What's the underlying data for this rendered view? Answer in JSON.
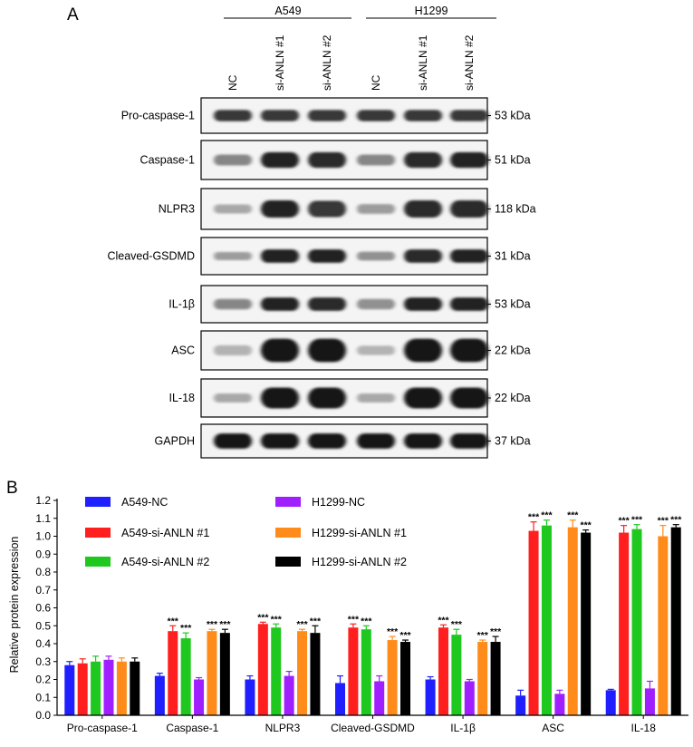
{
  "panel_a": {
    "letter": "A",
    "groups": [
      {
        "name": "A549",
        "lanes": [
          "NC",
          "si-ANLN #1",
          "si-ANLN #2"
        ]
      },
      {
        "name": "H1299",
        "lanes": [
          "NC",
          "si-ANLN #1",
          "si-ANLN #2"
        ]
      }
    ],
    "blots": [
      {
        "label": "Pro-caspase-1",
        "size": "53 kDa",
        "intensity": [
          0.8,
          0.8,
          0.8,
          0.8,
          0.8,
          0.8
        ],
        "thickness": [
          0.32,
          0.32,
          0.32,
          0.32,
          0.32,
          0.32
        ]
      },
      {
        "label": "Caspase-1",
        "size": "51 kDa",
        "intensity": [
          0.45,
          0.9,
          0.85,
          0.45,
          0.85,
          0.9
        ],
        "thickness": [
          0.28,
          0.4,
          0.4,
          0.28,
          0.4,
          0.4
        ]
      },
      {
        "label": "NLPR3",
        "size": "118 kDa",
        "intensity": [
          0.3,
          0.9,
          0.8,
          0.35,
          0.85,
          0.85
        ],
        "thickness": [
          0.22,
          0.42,
          0.4,
          0.24,
          0.42,
          0.42
        ]
      },
      {
        "label": "Cleaved-GSDMD",
        "size": "31 kDa",
        "intensity": [
          0.35,
          0.9,
          0.9,
          0.4,
          0.85,
          0.9
        ],
        "thickness": [
          0.22,
          0.36,
          0.36,
          0.24,
          0.36,
          0.36
        ]
      },
      {
        "label": "IL-1β",
        "size": "53 kDa",
        "intensity": [
          0.45,
          0.9,
          0.85,
          0.4,
          0.9,
          0.9
        ],
        "thickness": [
          0.28,
          0.36,
          0.36,
          0.28,
          0.36,
          0.36
        ]
      },
      {
        "label": "ASC",
        "size": "22 kDa",
        "intensity": [
          0.25,
          0.95,
          0.95,
          0.25,
          0.95,
          0.95
        ],
        "thickness": [
          0.26,
          0.6,
          0.6,
          0.24,
          0.6,
          0.6
        ]
      },
      {
        "label": "IL-18",
        "size": "22 kDa",
        "intensity": [
          0.3,
          0.95,
          0.95,
          0.3,
          0.95,
          0.95
        ],
        "thickness": [
          0.24,
          0.55,
          0.55,
          0.24,
          0.55,
          0.55
        ]
      },
      {
        "label": "GAPDH",
        "size": "37 kDa",
        "intensity": [
          0.95,
          0.95,
          0.95,
          0.95,
          0.95,
          0.95
        ],
        "thickness": [
          0.45,
          0.45,
          0.45,
          0.45,
          0.45,
          0.45
        ]
      }
    ]
  },
  "chart_data": {
    "type": "bar",
    "panel_letter": "B",
    "ylabel": "Relative protein expression",
    "xlabel": "",
    "ylim": [
      0,
      1.2
    ],
    "yticks": [
      "0.0",
      "0.1",
      "0.2",
      "0.3",
      "0.4",
      "0.5",
      "0.6",
      "0.7",
      "0.8",
      "0.9",
      "1.0",
      "1.1",
      "1.2"
    ],
    "categories": [
      "Pro-caspase-1",
      "Caspase-1",
      "NLPR3",
      "Cleaved-GSDMD",
      "IL-1β",
      "ASC",
      "IL-18"
    ],
    "legend_position": "top-left",
    "series": [
      {
        "name": "A549-NC",
        "color": "#1f1fff",
        "values": [
          0.28,
          0.22,
          0.2,
          0.18,
          0.2,
          0.11,
          0.14
        ],
        "errors": [
          0.02,
          0.015,
          0.02,
          0.04,
          0.015,
          0.03,
          0.005
        ],
        "sig": [
          "",
          "",
          "",
          "",
          "",
          "",
          ""
        ]
      },
      {
        "name": "A549-si-ANLN #1",
        "color": "#ff1f1f",
        "values": [
          0.29,
          0.47,
          0.51,
          0.49,
          0.49,
          1.03,
          1.02
        ],
        "errors": [
          0.025,
          0.03,
          0.01,
          0.02,
          0.015,
          0.05,
          0.04
        ],
        "sig": [
          "",
          "***",
          "***",
          "***",
          "***",
          "***",
          "***"
        ]
      },
      {
        "name": "A549-si-ANLN #2",
        "color": "#1fc81f",
        "values": [
          0.3,
          0.43,
          0.49,
          0.48,
          0.45,
          1.06,
          1.04
        ],
        "errors": [
          0.03,
          0.03,
          0.02,
          0.02,
          0.03,
          0.03,
          0.025
        ],
        "sig": [
          "",
          "***",
          "***",
          "***",
          "***",
          "***",
          "***"
        ]
      },
      {
        "name": "H1299-NC",
        "color": "#a01fff",
        "values": [
          0.31,
          0.2,
          0.22,
          0.19,
          0.19,
          0.12,
          0.15
        ],
        "errors": [
          0.02,
          0.01,
          0.025,
          0.03,
          0.01,
          0.02,
          0.04
        ],
        "sig": [
          "",
          "",
          "",
          "",
          "",
          "",
          ""
        ]
      },
      {
        "name": "H1299-si-ANLN #1",
        "color": "#ff8c1a",
        "values": [
          0.3,
          0.47,
          0.47,
          0.42,
          0.41,
          1.05,
          1.0
        ],
        "errors": [
          0.02,
          0.01,
          0.01,
          0.02,
          0.01,
          0.04,
          0.06
        ],
        "sig": [
          "",
          "***",
          "***",
          "***",
          "***",
          "***",
          "***"
        ]
      },
      {
        "name": "H1299-si-ANLN #2",
        "color": "#000000",
        "values": [
          0.3,
          0.46,
          0.46,
          0.41,
          0.41,
          1.02,
          1.05
        ],
        "errors": [
          0.02,
          0.02,
          0.04,
          0.01,
          0.03,
          0.015,
          0.015
        ],
        "sig": [
          "",
          "***",
          "***",
          "***",
          "***",
          "***",
          "***"
        ]
      }
    ]
  }
}
